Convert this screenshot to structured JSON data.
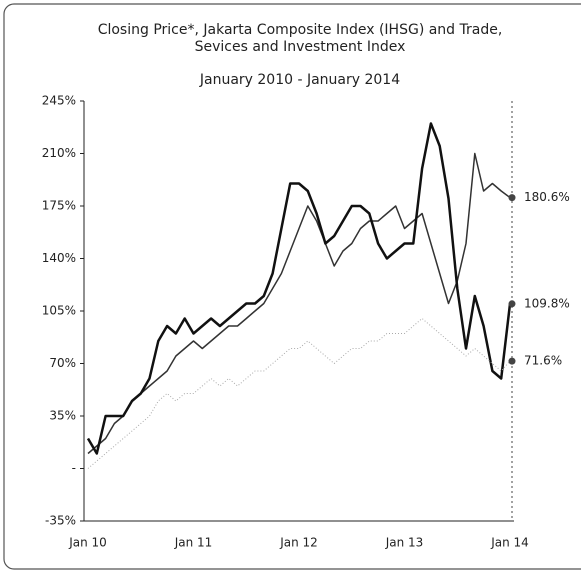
{
  "chart_data": {
    "type": "line",
    "title": "Closing Price*, Jakarta Composite Index (IHSG) and Trade, Sevices and Investment Index",
    "subtitle": "January 2010 - January 2014",
    "categories": [
      "Jan 10",
      null,
      null,
      null,
      null,
      null,
      null,
      null,
      null,
      null,
      null,
      null,
      "Jan 11",
      null,
      null,
      null,
      null,
      null,
      null,
      null,
      null,
      null,
      null,
      null,
      "Jan 12",
      null,
      null,
      null,
      null,
      null,
      null,
      null,
      null,
      null,
      null,
      null,
      "Jan 13",
      null,
      null,
      null,
      null,
      null,
      null,
      null,
      null,
      null,
      null,
      null,
      "Jan 14"
    ],
    "series": [
      {
        "color": "#333333",
        "width": 1.5,
        "values": [
          10,
          15,
          20,
          30,
          35,
          45,
          50,
          55,
          60,
          65,
          75,
          80,
          85,
          80,
          85,
          90,
          95,
          95,
          100,
          105,
          110,
          120,
          130,
          145,
          160,
          175,
          165,
          150,
          135,
          145,
          150,
          160,
          165,
          165,
          170,
          175,
          160,
          165,
          170,
          150,
          130,
          110,
          125,
          150,
          210,
          185,
          190,
          185,
          180.6
        ],
        "value_labels": [
          null,
          null,
          null,
          null,
          null,
          null,
          null,
          null,
          null,
          null,
          null,
          null,
          null,
          null,
          null,
          null,
          null,
          null,
          null,
          null,
          null,
          null,
          null,
          null,
          null,
          null,
          null,
          null,
          null,
          null,
          null,
          null,
          null,
          null,
          null,
          null,
          null,
          null,
          null,
          null,
          null,
          null,
          null,
          null,
          null,
          null,
          null,
          null,
          "180.6%"
        ]
      },
      {
        "color": "#111111",
        "width": 2.5,
        "values": [
          20,
          10,
          35,
          35,
          35,
          45,
          50,
          60,
          85,
          95,
          90,
          100,
          90,
          95,
          100,
          95,
          100,
          105,
          110,
          110,
          115,
          130,
          160,
          190,
          190,
          185,
          170,
          150,
          155,
          165,
          175,
          175,
          170,
          150,
          140,
          145,
          150,
          150,
          200,
          230,
          215,
          180,
          120,
          80,
          115,
          95,
          65,
          60,
          109.8
        ],
        "value_labels": [
          null,
          null,
          null,
          null,
          null,
          null,
          null,
          null,
          null,
          null,
          null,
          null,
          null,
          null,
          null,
          null,
          null,
          null,
          null,
          null,
          null,
          null,
          null,
          null,
          null,
          null,
          null,
          null,
          null,
          null,
          null,
          null,
          null,
          null,
          null,
          null,
          null,
          null,
          null,
          null,
          null,
          null,
          null,
          null,
          null,
          null,
          null,
          null,
          "109.8%"
        ]
      },
      {
        "color": "#aaaaaa",
        "width": 1,
        "dash": true,
        "values": [
          0,
          5,
          10,
          15,
          20,
          25,
          30,
          35,
          45,
          50,
          45,
          50,
          50,
          55,
          60,
          55,
          60,
          55,
          60,
          65,
          65,
          70,
          75,
          80,
          80,
          85,
          80,
          75,
          70,
          75,
          80,
          80,
          85,
          85,
          90,
          90,
          90,
          95,
          100,
          95,
          90,
          85,
          80,
          75,
          80,
          75,
          70,
          65,
          71.6
        ],
        "value_labels": [
          null,
          null,
          null,
          null,
          null,
          null,
          null,
          null,
          null,
          null,
          null,
          null,
          null,
          null,
          null,
          null,
          null,
          null,
          null,
          null,
          null,
          null,
          null,
          null,
          null,
          null,
          null,
          null,
          null,
          null,
          null,
          null,
          null,
          null,
          null,
          null,
          null,
          null,
          null,
          null,
          null,
          null,
          null,
          null,
          null,
          null,
          null,
          null,
          "71.6%"
        ]
      }
    ],
    "ylim": [
      -35,
      245
    ],
    "yticks": [
      {
        "value": -35,
        "label": "-35%"
      },
      {
        "value": 0,
        "label": "-"
      },
      {
        "value": 35,
        "label": "35%"
      },
      {
        "value": 70,
        "label": "70%"
      },
      {
        "value": 105,
        "label": "105%"
      },
      {
        "value": 140,
        "label": "140%"
      },
      {
        "value": 175,
        "label": "175%"
      },
      {
        "value": 210,
        "label": "210%"
      },
      {
        "value": 245,
        "label": "245%"
      }
    ]
  }
}
